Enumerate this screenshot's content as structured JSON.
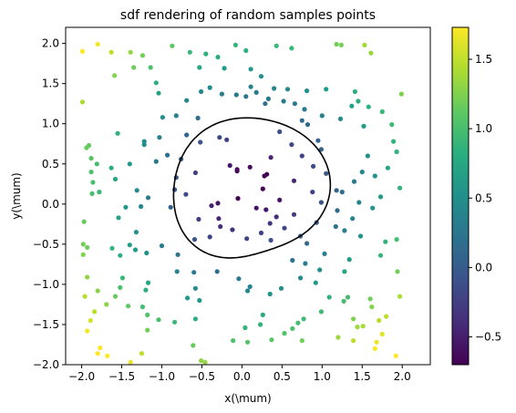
{
  "chart_data": {
    "type": "scatter",
    "title": "sdf rendering of random samples points",
    "xlabel": "x(\\mum)",
    "ylabel": "y(\\mum)",
    "xlim": [
      -2.2,
      2.35
    ],
    "ylim": [
      -2.0,
      2.2
    ],
    "xticks": [
      -2.0,
      -1.5,
      -1.0,
      -0.5,
      0.0,
      0.5,
      1.0,
      1.5,
      2.0
    ],
    "xtick_labels": [
      "−2.0",
      "−1.5",
      "−1.0",
      "−0.5",
      "0.0",
      "0.5",
      "1.0",
      "1.5",
      "2.0"
    ],
    "yticks": [
      -2.0,
      -1.5,
      -1.0,
      -0.5,
      0.0,
      0.5,
      1.0,
      1.5,
      2.0
    ],
    "ytick_labels": [
      "−2.0",
      "−1.5",
      "−1.0",
      "−0.5",
      "0.0",
      "0.5",
      "1.0",
      "1.5",
      "2.0"
    ],
    "colorbar": {
      "colormap": "viridis",
      "range": [
        -0.7,
        1.73
      ],
      "ticks": [
        -0.5,
        0.0,
        0.5,
        1.0,
        1.5
      ],
      "tick_labels": [
        "−0.5",
        "0.0",
        "0.5",
        "1.0",
        "1.5"
      ]
    },
    "points": [
      [
        -1.99,
        1.9
      ],
      [
        -1.8,
        1.99
      ],
      [
        -1.63,
        1.89
      ],
      [
        -1.39,
        1.89
      ],
      [
        -1.24,
        1.85
      ],
      [
        -0.87,
        1.97
      ],
      [
        -0.65,
        1.89
      ],
      [
        -0.45,
        1.87
      ],
      [
        -0.3,
        1.83
      ],
      [
        -0.08,
        1.98
      ],
      [
        0.05,
        1.91
      ],
      [
        0.43,
        1.97
      ],
      [
        0.62,
        1.94
      ],
      [
        1.18,
        1.99
      ],
      [
        1.24,
        1.98
      ],
      [
        1.53,
        1.98
      ],
      [
        1.61,
        1.88
      ],
      [
        1.99,
        1.37
      ],
      [
        -1.99,
        1.27
      ],
      [
        -1.91,
        0.73
      ],
      [
        -1.94,
        0.7
      ],
      [
        -1.88,
        0.57
      ],
      [
        -1.81,
        0.5
      ],
      [
        -1.88,
        0.4
      ],
      [
        -1.86,
        0.27
      ],
      [
        -1.78,
        0.15
      ],
      [
        -1.87,
        0.13
      ],
      [
        -1.97,
        -0.22
      ],
      [
        -1.98,
        -0.5
      ],
      [
        -1.93,
        -0.54
      ],
      [
        -1.98,
        -0.63
      ],
      [
        -1.93,
        -0.91
      ],
      [
        -1.96,
        -1.15
      ],
      [
        -1.8,
        -1.08
      ],
      [
        -1.84,
        -1.34
      ],
      [
        -1.89,
        -1.45
      ],
      [
        -1.93,
        -1.58
      ],
      [
        -1.77,
        -1.79
      ],
      [
        -1.8,
        -1.86
      ],
      [
        -1.68,
        -1.89
      ],
      [
        -1.39,
        -1.97
      ],
      [
        -1.25,
        -1.86
      ],
      [
        -0.51,
        -1.95
      ],
      [
        -0.46,
        -1.97
      ],
      [
        1.75,
        1.15
      ],
      [
        1.58,
        1.21
      ],
      [
        1.87,
        0.99
      ],
      [
        1.89,
        0.78
      ],
      [
        1.93,
        0.65
      ],
      [
        1.82,
        0.45
      ],
      [
        1.66,
        0.35
      ],
      [
        1.97,
        0.2
      ],
      [
        1.73,
        0.09
      ],
      [
        1.63,
        -0.05
      ],
      [
        1.93,
        -0.44
      ],
      [
        1.79,
        -0.47
      ],
      [
        1.73,
        -0.64
      ],
      [
        1.94,
        -0.84
      ],
      [
        1.97,
        -1.15
      ],
      [
        1.6,
        -1.18
      ],
      [
        1.62,
        -1.28
      ],
      [
        1.8,
        -1.4
      ],
      [
        1.71,
        -1.45
      ],
      [
        1.75,
        -1.62
      ],
      [
        1.51,
        -1.52
      ],
      [
        1.68,
        -1.72
      ],
      [
        1.66,
        -1.8
      ],
      [
        1.92,
        -1.89
      ],
      [
        1.39,
        -1.7
      ],
      [
        1.2,
        -1.66
      ],
      [
        -1.59,
        1.6
      ],
      [
        -1.35,
        1.7
      ],
      [
        -1.14,
        1.7
      ],
      [
        -1.07,
        1.51
      ],
      [
        -0.53,
        1.7
      ],
      [
        -0.22,
        1.69
      ],
      [
        0.11,
        1.68
      ],
      [
        0.24,
        1.59
      ],
      [
        0.11,
        1.46
      ],
      [
        0.4,
        1.44
      ],
      [
        0.57,
        1.43
      ],
      [
        0.81,
        1.41
      ],
      [
        1.05,
        1.43
      ],
      [
        1.0,
        1.1
      ],
      [
        1.41,
        1.4
      ],
      [
        1.37,
        1.22
      ],
      [
        1.45,
        1.28
      ],
      [
        1.23,
        1.06
      ],
      [
        1.52,
        0.97
      ],
      [
        1.57,
        0.6
      ],
      [
        1.5,
        0.4
      ],
      [
        1.4,
        0.28
      ],
      [
        1.25,
        0.15
      ],
      [
        1.46,
        0.02
      ],
      [
        1.38,
        -0.18
      ],
      [
        1.28,
        -0.33
      ],
      [
        1.48,
        -0.4
      ],
      [
        1.34,
        -0.69
      ],
      [
        1.28,
        -0.84
      ],
      [
        1.32,
        -1.16
      ],
      [
        1.39,
        -1.43
      ],
      [
        1.44,
        -1.53
      ],
      [
        1.27,
        -1.21
      ],
      [
        1.09,
        -1.16
      ],
      [
        0.92,
        -0.98
      ],
      [
        0.99,
        -1.34
      ],
      [
        0.77,
        -1.43
      ],
      [
        0.75,
        -1.7
      ],
      [
        0.53,
        -1.61
      ],
      [
        0.7,
        -1.48
      ],
      [
        0.63,
        -1.55
      ],
      [
        0.37,
        -1.69
      ],
      [
        0.26,
        -1.38
      ],
      [
        0.23,
        -1.5
      ],
      [
        0.04,
        -1.54
      ],
      [
        0.07,
        -1.72
      ],
      [
        -0.11,
        -1.7
      ],
      [
        -0.61,
        -1.76
      ],
      [
        -0.58,
        -1.43
      ],
      [
        -0.84,
        -1.47
      ],
      [
        -1.04,
        -1.44
      ],
      [
        -1.18,
        -1.57
      ],
      [
        -1.18,
        -1.38
      ],
      [
        -1.24,
        -1.28
      ],
      [
        -1.42,
        -1.27
      ],
      [
        -1.69,
        -1.25
      ],
      [
        -1.58,
        -1.15
      ],
      [
        -1.52,
        -1.04
      ],
      [
        -1.2,
        -1.07
      ],
      [
        -1.17,
        -0.98
      ],
      [
        -1.49,
        -0.92
      ],
      [
        -1.52,
        -0.64
      ],
      [
        -1.62,
        -0.55
      ],
      [
        -1.4,
        -0.51
      ],
      [
        -1.33,
        -0.57
      ],
      [
        -1.19,
        -0.61
      ],
      [
        -1.0,
        -0.52
      ],
      [
        -0.8,
        -0.63
      ],
      [
        -0.81,
        -0.84
      ],
      [
        -0.6,
        -0.85
      ],
      [
        -0.31,
        -0.84
      ],
      [
        -0.58,
        -1.05
      ],
      [
        -0.68,
        -1.17
      ],
      [
        -0.53,
        -1.2
      ],
      [
        -0.04,
        -0.93
      ],
      [
        0.07,
        -1.08
      ],
      [
        0.1,
        -1.03
      ],
      [
        0.35,
        -1.12
      ],
      [
        0.49,
        -1.05
      ],
      [
        0.73,
        -0.92
      ],
      [
        0.79,
        -0.74
      ],
      [
        0.97,
        -0.82
      ],
      [
        1.03,
        -0.62
      ],
      [
        1.17,
        -0.28
      ],
      [
        1.19,
        -0.08
      ],
      [
        1.05,
        0.38
      ],
      [
        0.99,
        0.68
      ],
      [
        0.95,
        0.79
      ],
      [
        0.82,
        0.99
      ],
      [
        0.75,
        1.04
      ],
      [
        0.78,
        1.18
      ],
      [
        0.66,
        1.25
      ],
      [
        0.52,
        1.28
      ],
      [
        0.33,
        1.31
      ],
      [
        0.29,
        1.25
      ],
      [
        0.18,
        1.39
      ],
      [
        0.05,
        1.34
      ],
      [
        -0.51,
        1.4
      ],
      [
        -0.25,
        1.37
      ],
      [
        -0.07,
        1.36
      ],
      [
        -0.4,
        1.45
      ],
      [
        -1.04,
        1.38
      ],
      [
        -0.69,
        1.29
      ],
      [
        -0.55,
        1.07
      ],
      [
        -0.82,
        1.1
      ],
      [
        -0.99,
        1.08
      ],
      [
        -0.69,
        0.86
      ],
      [
        -0.93,
        0.61
      ],
      [
        -1.07,
        0.53
      ],
      [
        -0.76,
        0.56
      ],
      [
        -1.22,
        0.74
      ],
      [
        -1.4,
        0.5
      ],
      [
        -1.55,
        0.88
      ],
      [
        -1.63,
        0.45
      ],
      [
        -1.58,
        0.31
      ],
      [
        -1.31,
        0.17
      ],
      [
        -1.17,
        0.08
      ],
      [
        -1.26,
        -0.03
      ],
      [
        -1.45,
        -0.04
      ],
      [
        -1.54,
        -0.17
      ],
      [
        -1.32,
        -0.35
      ],
      [
        -1.03,
        0.83
      ],
      [
        -1.22,
        0.78
      ],
      [
        -0.52,
        0.77
      ],
      [
        -0.28,
        0.83
      ],
      [
        -0.19,
        0.8
      ],
      [
        0.47,
        0.9
      ],
      [
        0.62,
        0.74
      ],
      [
        0.75,
        0.6
      ],
      [
        0.89,
        0.47
      ],
      [
        0.65,
        0.29
      ],
      [
        0.88,
        0.15
      ],
      [
        1.18,
        0.17
      ],
      [
        0.99,
        0.02
      ],
      [
        0.73,
        -0.4
      ],
      [
        0.81,
        -0.49
      ],
      [
        0.63,
        -0.7
      ],
      [
        0.93,
        -0.23
      ],
      [
        0.65,
        -0.13
      ],
      [
        -0.15,
        0.48
      ],
      [
        -0.06,
        0.41
      ],
      [
        -0.06,
        0.43
      ],
      [
        0.1,
        0.46
      ],
      [
        0.28,
        0.35
      ],
      [
        0.31,
        0.37
      ],
      [
        0.36,
        0.58
      ],
      [
        0.26,
        0.19
      ],
      [
        0.43,
        -0.16
      ],
      [
        0.3,
        -0.07
      ],
      [
        0.35,
        -0.24
      ],
      [
        0.18,
        -0.05
      ],
      [
        0.47,
        0.05
      ],
      [
        0.53,
        -0.3
      ],
      [
        -0.3,
        0.01
      ],
      [
        -0.29,
        -0.18
      ],
      [
        -0.27,
        -0.28
      ],
      [
        -0.54,
        -0.19
      ],
      [
        -0.59,
        -0.44
      ],
      [
        -0.4,
        -0.41
      ],
      [
        -0.12,
        -0.32
      ],
      [
        0.06,
        -0.43
      ],
      [
        0.36,
        -0.45
      ],
      [
        0.24,
        -0.36
      ],
      [
        -0.05,
        0.07
      ],
      [
        -0.58,
        0.39
      ],
      [
        -0.82,
        0.33
      ],
      [
        -0.7,
        0.12
      ],
      [
        -0.89,
        -0.04
      ],
      [
        -0.84,
        0.18
      ],
      [
        -0.38,
        -0.02
      ]
    ],
    "contour_level": 0.0
  }
}
